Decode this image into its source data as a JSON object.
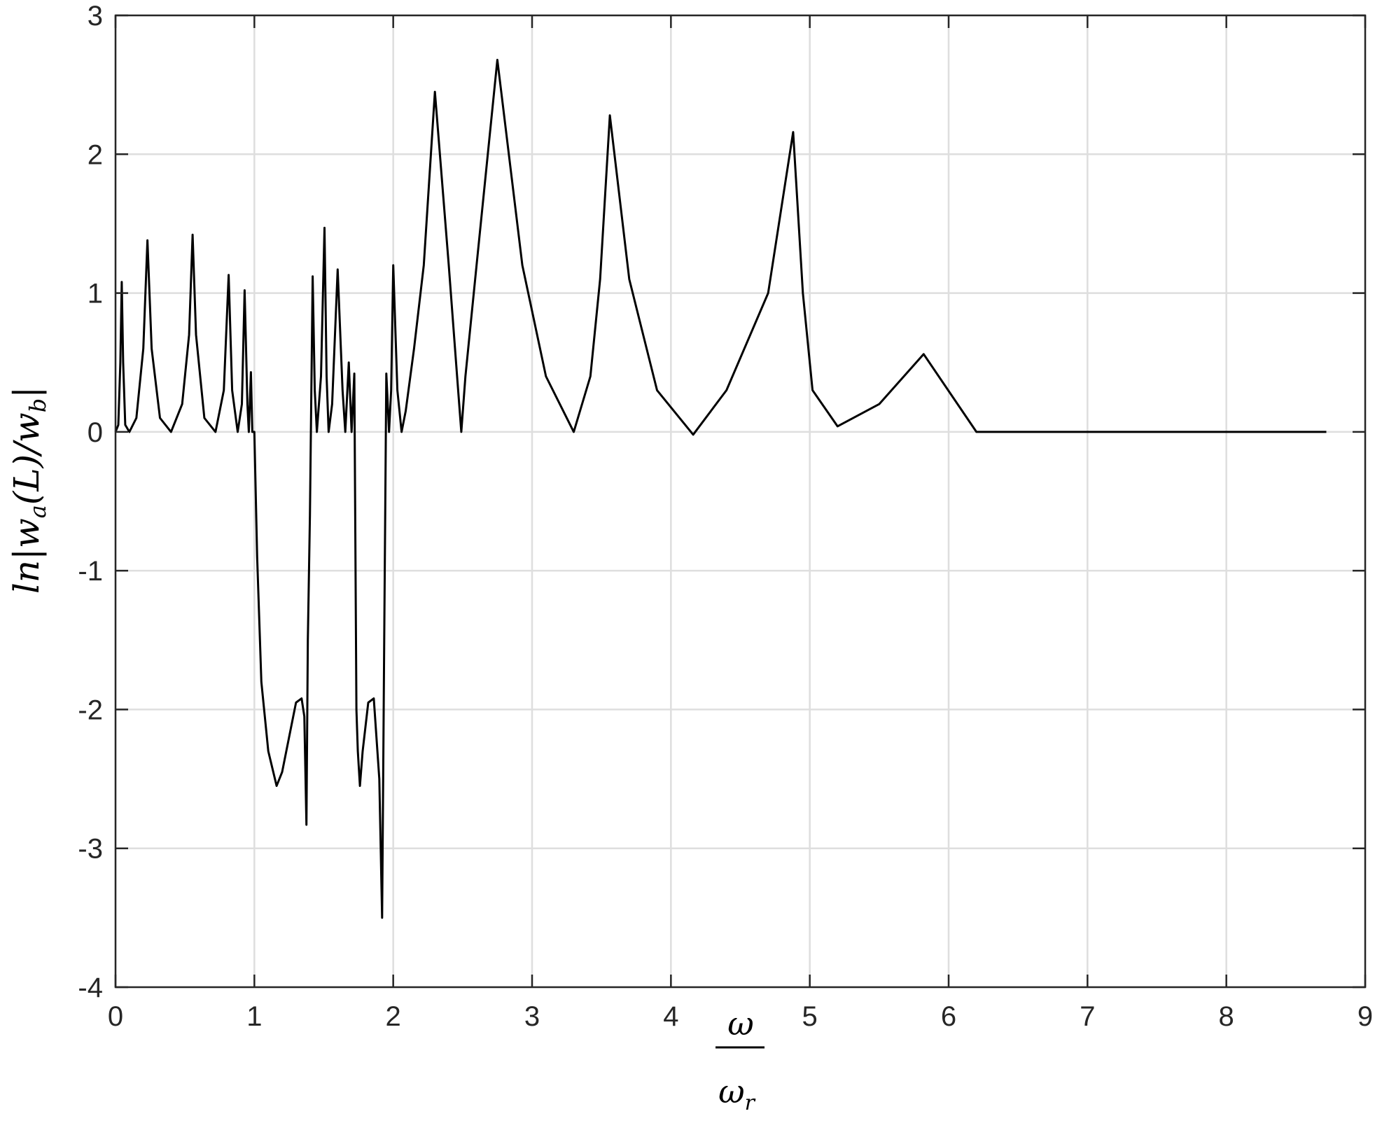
{
  "chart_data": {
    "type": "line",
    "title": "",
    "xlabel": {
      "numerator": "ω",
      "denominator": "ω",
      "denominator_sub": "r"
    },
    "ylabel": {
      "prefix": "ln",
      "open": "|",
      "var": "w",
      "sub_a": "a",
      "arg": "(L)/",
      "var2": "w",
      "sub_b": "b",
      "close": "|"
    },
    "xlim": [
      0,
      9
    ],
    "ylim": [
      -4,
      3
    ],
    "xticks": [
      0,
      1,
      2,
      3,
      4,
      5,
      6,
      7,
      8,
      9
    ],
    "yticks": [
      -4,
      -3,
      -2,
      -1,
      0,
      1,
      2,
      3
    ],
    "grid": true,
    "series": [
      {
        "color": "#000000",
        "x": [
          0.0,
          0.02,
          0.035,
          0.045,
          0.055,
          0.07,
          0.1,
          0.15,
          0.2,
          0.23,
          0.26,
          0.32,
          0.4,
          0.48,
          0.53,
          0.555,
          0.58,
          0.64,
          0.72,
          0.78,
          0.815,
          0.84,
          0.88,
          0.91,
          0.93,
          0.95,
          0.96,
          0.975,
          0.985,
          1.0,
          1.02,
          1.05,
          1.1,
          1.16,
          1.2,
          1.25,
          1.3,
          1.34,
          1.36,
          1.375,
          1.385,
          1.4,
          1.42,
          1.435,
          1.45,
          1.48,
          1.505,
          1.52,
          1.535,
          1.56,
          1.6,
          1.635,
          1.655,
          1.68,
          1.7,
          1.72,
          1.735,
          1.745,
          1.76,
          1.78,
          1.82,
          1.86,
          1.9,
          1.92,
          1.935,
          1.95,
          1.97,
          1.985,
          2.0,
          2.03,
          2.06,
          2.09,
          2.15,
          2.22,
          2.3,
          2.4,
          2.46,
          2.49,
          2.52,
          2.6,
          2.75,
          2.93,
          3.1,
          3.3,
          3.42,
          3.49,
          3.56,
          3.7,
          3.9,
          4.16,
          4.4,
          4.7,
          4.88,
          4.95,
          5.02,
          5.2,
          5.5,
          5.82,
          6.2,
          6.55,
          6.72,
          6.78,
          6.84,
          7.0,
          7.3,
          7.8,
          8.2,
          8.5,
          8.72
        ],
        "y": [
          0.0,
          0.05,
          0.5,
          1.08,
          0.5,
          0.05,
          0.0,
          0.1,
          0.6,
          1.38,
          0.6,
          0.1,
          0.0,
          0.2,
          0.7,
          1.42,
          0.7,
          0.1,
          0.0,
          0.3,
          1.13,
          0.3,
          0.0,
          0.2,
          1.02,
          0.2,
          0.0,
          0.43,
          0.0,
          0.0,
          -0.9,
          -1.8,
          -2.3,
          -2.55,
          -2.45,
          -2.2,
          -1.95,
          -1.92,
          -2.05,
          -2.83,
          -1.5,
          -0.6,
          1.12,
          0.3,
          0.0,
          0.4,
          1.47,
          0.4,
          0.0,
          0.2,
          1.17,
          0.3,
          0.0,
          0.5,
          0.0,
          0.42,
          -2.0,
          -2.3,
          -2.55,
          -2.3,
          -1.95,
          -1.92,
          -2.5,
          -3.5,
          -1.5,
          0.42,
          0.0,
          0.3,
          1.2,
          0.3,
          0.0,
          0.15,
          0.6,
          1.2,
          2.45,
          1.2,
          0.4,
          0.0,
          0.4,
          1.2,
          2.68,
          1.2,
          0.4,
          0.0,
          0.4,
          1.1,
          2.28,
          1.1,
          0.3,
          -0.02,
          0.3,
          1.0,
          2.16,
          1.0,
          0.3,
          0.04,
          0.2,
          0.56,
          0.0,
          0.0,
          0.0,
          0.0,
          0.0,
          0.0,
          0.0,
          0.0,
          0.0,
          0.0,
          0.0
        ]
      }
    ]
  }
}
